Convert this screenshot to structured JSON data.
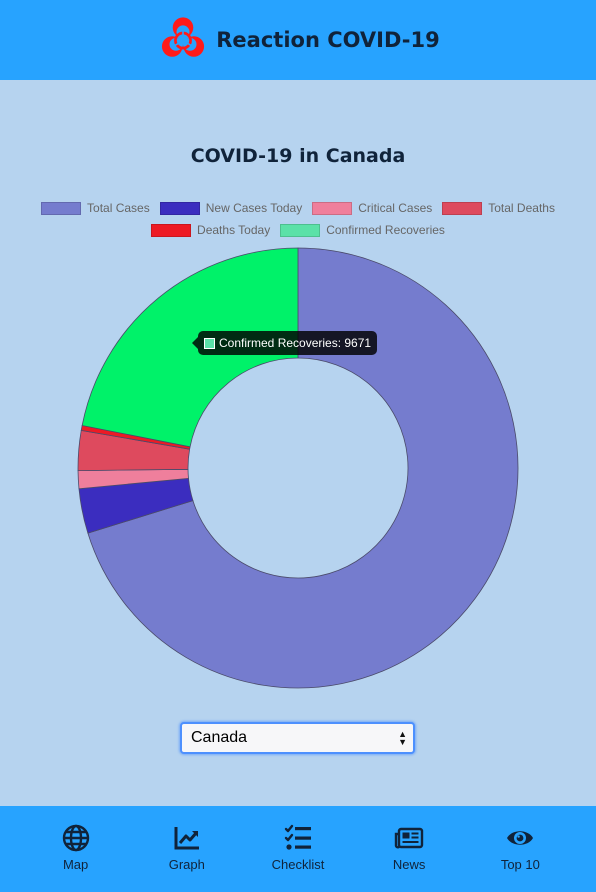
{
  "header": {
    "title": "Reaction COVID-19",
    "logo_icon": "biohazard-icon",
    "logo_color": "#ff1a1a",
    "bar_color": "#27a3ff"
  },
  "page": {
    "title": "COVID-19 in Canada",
    "background_color": "#b6d3ef"
  },
  "chart_data": {
    "type": "pie",
    "variant": "doughnut",
    "title": "COVID-19 in Canada",
    "legend_position": "top",
    "labels": [
      "Total Cases",
      "New Cases Today",
      "Critical Cases",
      "Total Deaths",
      "Deaths Today",
      "Confirmed Recoveries"
    ],
    "values": [
      31000,
      1450,
      580,
      1290,
      160,
      9671
    ],
    "colors": [
      "#757cce",
      "#3b2dbf",
      "#ef7f9c",
      "#de4a5e",
      "#ed1a24",
      "#00f269"
    ],
    "legend_colors": [
      "#757cce",
      "#3b2dbf",
      "#ef7f9c",
      "#de4a5e",
      "#ed1a24",
      "#5be1a8"
    ],
    "tooltip": {
      "label": "Confirmed Recoveries: 9671",
      "color": "#5be1a8"
    }
  },
  "country_select": {
    "selected": "Canada"
  },
  "bottom_nav": [
    {
      "label": "Map",
      "icon": "globe-icon"
    },
    {
      "label": "Graph",
      "icon": "chart-line-icon"
    },
    {
      "label": "Checklist",
      "icon": "checklist-icon"
    },
    {
      "label": "News",
      "icon": "newspaper-icon"
    },
    {
      "label": "Top 10",
      "icon": "eye-icon"
    }
  ]
}
